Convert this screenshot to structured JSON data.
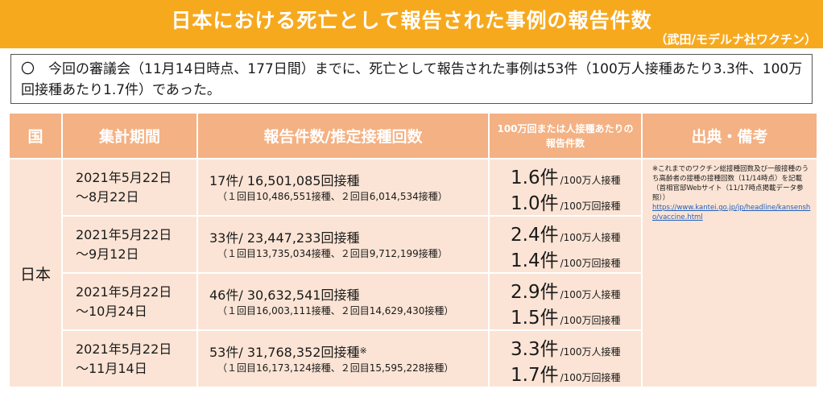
{
  "title": {
    "main": "日本における死亡として報告された事例の報告件数",
    "sub": "（武田/モデルナ社ワクチン）"
  },
  "summary": "〇　今回の審議会（11月14日時点、177日間）までに、死亡として報告された事例は53件（100万人接種あたり3.3件、100万回接種あたり1.7件）であった。",
  "table": {
    "headers": {
      "country": "国",
      "period": "集計期間",
      "count": "報告件数/推定接種回数",
      "rate": "100万回または人接種あたりの報告件数",
      "source": "出典・備考"
    },
    "country": "日本",
    "rows": [
      {
        "period_start": "2021年5月22日",
        "period_end": "～8月22日",
        "count_main": "17件/ 16,501,085回接種",
        "count_sub": "（１回目10,486,551接種、２回目6,014,534接種）",
        "rate_person": "1.6件",
        "rate_person_unit": "/100万人接種",
        "rate_dose": "1.0件",
        "rate_dose_unit": "/100万回接種"
      },
      {
        "period_start": "2021年5月22日",
        "period_end": "～9月12日",
        "count_main": "33件/ 23,447,233回接種",
        "count_sub": "（１回目13,735,034接種、２回目9,712,199接種）",
        "rate_person": "2.4件",
        "rate_person_unit": "/100万人接種",
        "rate_dose": "1.4件",
        "rate_dose_unit": "/100万回接種"
      },
      {
        "period_start": "2021年5月22日",
        "period_end": "～10月24日",
        "count_main": "46件/ 30,632,541回接種",
        "count_sub": "（１回目16,003,111接種、２回目14,629,430接種）",
        "rate_person": "2.9件",
        "rate_person_unit": "/100万人接種",
        "rate_dose": "1.5件",
        "rate_dose_unit": "/100万回接種"
      },
      {
        "period_start": "2021年5月22日",
        "period_end": "～11月14日",
        "count_main": "53件/ 31,768,352回接種",
        "count_mark": "※",
        "count_sub": "（１回目16,173,124接種、２回目15,595,228接種）",
        "rate_person": "3.3件",
        "rate_person_unit": "/100万人接種",
        "rate_dose": "1.7件",
        "rate_dose_unit": "/100万回接種"
      }
    ],
    "source": {
      "note": "※これまでのワクチン総接種回数及び一般接種のうち高齢者の接種の接種回数（11/14時点）を記載（首相官邸Webサイト（11/17時点掲載データ参照））",
      "link": "https://www.kantei.go.jp/jp/headline/kansensho/vaccine.html"
    }
  },
  "colors": {
    "title_bg": "#f7a91e",
    "header_bg": "#f4b183",
    "cell_bg": "#fbe4d5",
    "link": "#1f5fbf"
  }
}
